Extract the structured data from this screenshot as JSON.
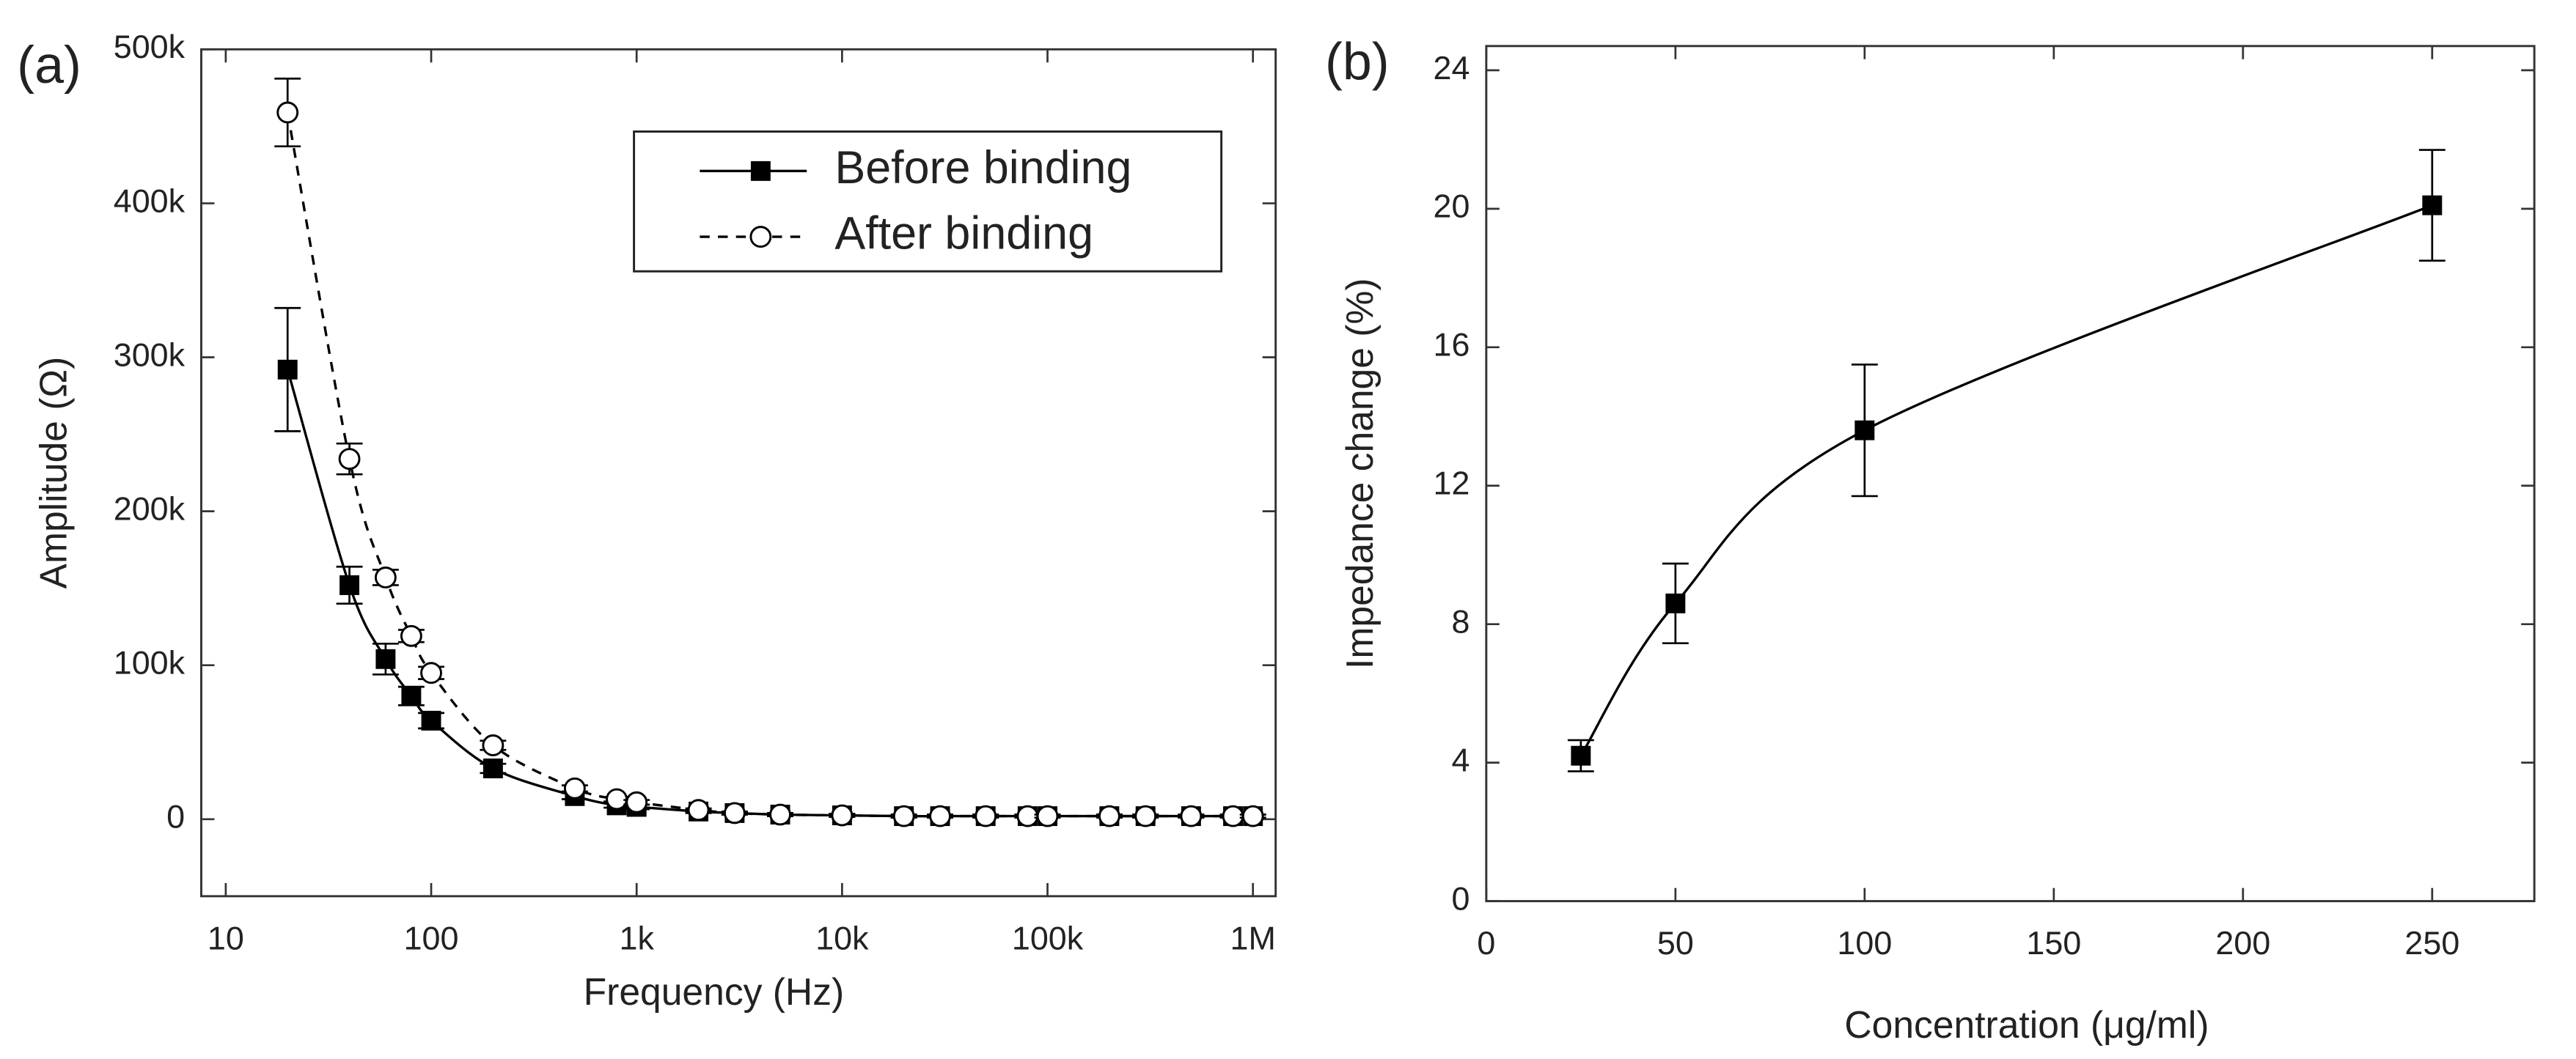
{
  "chart_data": [
    {
      "type": "line",
      "panel_label": "(a)",
      "xlabel": "Frequency (Hz)",
      "ylabel": "Amplitude (Ω)",
      "xscale": "log",
      "xlim": [
        7.6,
        1290000
      ],
      "ylim": [
        -50000,
        500000
      ],
      "xticks": [
        10,
        100,
        {
          "value": 1000,
          "label": "1k"
        },
        {
          "value": 10000,
          "label": "10k"
        },
        {
          "value": 100000,
          "label": "100k"
        },
        {
          "value": 1000000,
          "label": "1M"
        }
      ],
      "yticks": [
        0,
        {
          "value": 100000,
          "label": "100k"
        },
        {
          "value": 200000,
          "label": "200k"
        },
        {
          "value": 300000,
          "label": "300k"
        },
        {
          "value": 400000,
          "label": "400k"
        },
        {
          "value": 500000,
          "label": "500k"
        }
      ],
      "legend": "upper right",
      "x": [
        20,
        40,
        60,
        80,
        100,
        200,
        500,
        800,
        1000,
        2000,
        3000,
        5000,
        10000,
        20000,
        30000,
        50000,
        80000,
        100000,
        200000,
        300000,
        500000,
        800000,
        1000000
      ],
      "series": [
        {
          "name": "Before binding",
          "color": "#000000",
          "marker": "square",
          "line_style": "solid",
          "values": [
            292000,
            152000,
            104000,
            80000,
            64000,
            33000,
            15000,
            9000,
            8000,
            5000,
            4000,
            3000,
            2500,
            2000,
            2000,
            2000,
            2000,
            2000,
            2000,
            2000,
            2000,
            2000,
            2000
          ],
          "errors": [
            40000,
            12000,
            10000,
            6000,
            5000,
            3000,
            2000,
            1500,
            1500,
            1000,
            1000,
            1000,
            1000,
            1000,
            1000,
            1000,
            1000,
            1000,
            1000,
            1000,
            1000,
            1000,
            1000
          ]
        },
        {
          "name": "After binding",
          "color": "#000000",
          "marker": "circle",
          "line_style": "dashed",
          "values": [
            459000,
            234000,
            157000,
            119000,
            95000,
            48000,
            20000,
            13000,
            11000,
            6000,
            4000,
            3000,
            2500,
            2000,
            2000,
            2000,
            2000,
            2000,
            2000,
            2000,
            2000,
            2000,
            2000
          ],
          "errors": [
            22000,
            10000,
            5000,
            4000,
            4000,
            3000,
            2000,
            1500,
            1500,
            1000,
            1000,
            1000,
            1000,
            1000,
            1000,
            1000,
            1000,
            1000,
            1000,
            1000,
            1000,
            1000,
            1000
          ]
        }
      ]
    },
    {
      "type": "line",
      "panel_label": "(b)",
      "xlabel": "Concentration (μg/ml)",
      "ylabel": "Impedance change (%)",
      "xlim": [
        0,
        277
      ],
      "ylim": [
        0,
        24.7
      ],
      "xticks": [
        0,
        50,
        100,
        150,
        200,
        250
      ],
      "yticks": [
        0,
        4,
        8,
        12,
        16,
        20,
        24
      ],
      "x": [
        25,
        50,
        100,
        250
      ],
      "series": [
        {
          "color": "#000000",
          "marker": "square",
          "line_style": "solid",
          "values": [
            4.2,
            8.6,
            13.6,
            20.1
          ],
          "errors": [
            0.45,
            1.15,
            1.9,
            1.6
          ]
        }
      ]
    }
  ]
}
